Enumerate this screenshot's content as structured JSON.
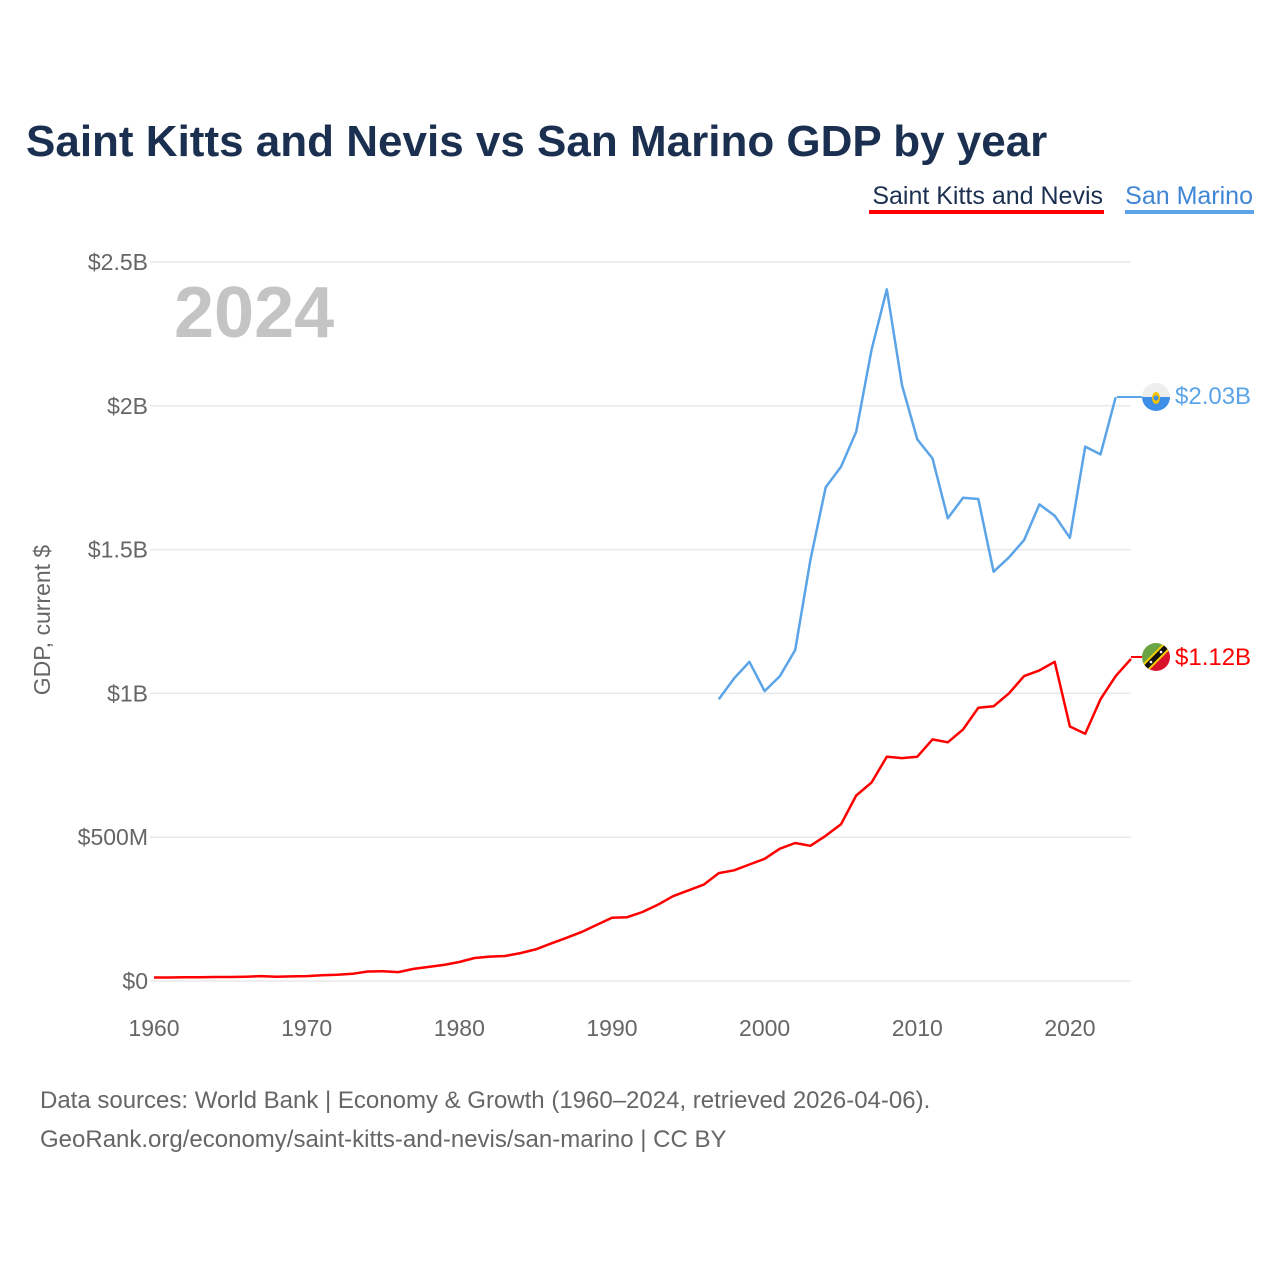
{
  "title": "Saint Kitts and Nevis vs San Marino GDP by year",
  "year_watermark": "2024",
  "footer": {
    "line1": "Data sources: World Bank | Economy & Growth (1960–2024, retrieved 2026-04-06).",
    "line2": "GeoRank.org/economy/saint-kitts-and-nevis/san-marino | CC BY"
  },
  "chart_data": {
    "type": "line",
    "title": "Saint Kitts and Nevis vs San Marino GDP by year",
    "xlabel": "",
    "ylabel": "GDP, current $",
    "xlim": [
      1960,
      2024
    ],
    "ylim": [
      0,
      2.5
    ],
    "y_unit": "billions USD",
    "grid": true,
    "legend_position": "top-right",
    "x_ticks": [
      1960,
      1970,
      1980,
      1990,
      2000,
      2010,
      2020
    ],
    "x_tick_labels": [
      "1960",
      "1970",
      "1980",
      "1990",
      "2000",
      "2010",
      "2020"
    ],
    "y_ticks": [
      0,
      0.5,
      1,
      1.5,
      2,
      2.5
    ],
    "y_tick_labels": [
      "$0",
      "$500M",
      "$1B",
      "$1.5B",
      "$2B",
      "$2.5B"
    ],
    "series": [
      {
        "name": "Saint Kitts and Nevis",
        "color": "#ff0000",
        "end_label": "$1.12B",
        "flag_icon": "flag-saint-kitts-and-nevis",
        "start_year": 1960,
        "values": [
          0.012,
          0.012,
          0.013,
          0.013,
          0.014,
          0.014,
          0.015,
          0.017,
          0.015,
          0.016,
          0.017,
          0.02,
          0.022,
          0.025,
          0.033,
          0.034,
          0.031,
          0.042,
          0.049,
          0.056,
          0.066,
          0.08,
          0.085,
          0.087,
          0.097,
          0.11,
          0.13,
          0.15,
          0.17,
          0.195,
          0.22,
          0.222,
          0.24,
          0.265,
          0.295,
          0.315,
          0.335,
          0.375,
          0.385,
          0.405,
          0.425,
          0.46,
          0.48,
          0.47,
          0.505,
          0.545,
          0.645,
          0.69,
          0.78,
          0.775,
          0.78,
          0.84,
          0.83,
          0.875,
          0.95,
          0.955,
          1.0,
          1.06,
          1.08,
          1.11,
          0.885,
          0.86,
          0.98,
          1.06,
          1.12
        ]
      },
      {
        "name": "San Marino",
        "color": "#5ba4e8",
        "end_label": "$2.03B",
        "flag_icon": "flag-san-marino",
        "start_year": 1997,
        "values": [
          0.98,
          1.052,
          1.11,
          1.008,
          1.06,
          1.151,
          1.464,
          1.717,
          1.788,
          1.91,
          2.194,
          2.405,
          2.072,
          1.883,
          1.817,
          1.609,
          1.68,
          1.676,
          1.423,
          1.473,
          1.533,
          1.657,
          1.618,
          1.541,
          1.858,
          1.831,
          2.03
        ]
      }
    ]
  }
}
